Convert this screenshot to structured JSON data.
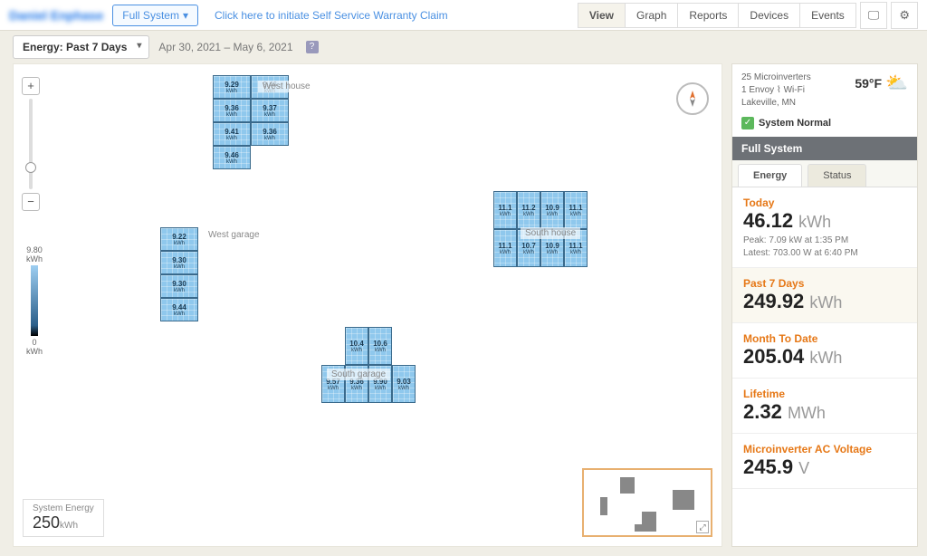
{
  "header": {
    "owner_name": "Daniel Enphase",
    "system_selector": "Full System",
    "warranty_link": "Click here to initiate Self Service Warranty Claim",
    "tabs": [
      "View",
      "Graph",
      "Reports",
      "Devices",
      "Events"
    ],
    "active_tab": "View"
  },
  "controls": {
    "metric_selector": "Energy: Past 7 Days",
    "date_range": "Apr 30, 2021 – May 6, 2021"
  },
  "scale": {
    "max": "9.80",
    "max_unit": "kWh",
    "min": "0",
    "min_unit": "kWh"
  },
  "system_energy": {
    "label": "System Energy",
    "value": "250",
    "unit": "kWh"
  },
  "arrays": {
    "west_house": {
      "label": "West house",
      "panels": [
        [
          "9.29",
          "9.46"
        ],
        [
          "9.36",
          "9.37"
        ],
        [
          "9.41",
          "9.36"
        ],
        [
          "9.46"
        ]
      ]
    },
    "west_garage": {
      "label": "West garage",
      "panels": [
        "9.22",
        "9.30",
        "9.30",
        "9.44"
      ]
    },
    "south_house": {
      "label": "South house",
      "panels": [
        [
          "11.1",
          "11.2",
          "10.9",
          "11.1"
        ],
        [
          "11.1",
          "10.7",
          "10.9",
          "11.1"
        ]
      ]
    },
    "south_garage": {
      "label": "South garage",
      "panels_top": [
        "10.4",
        "10.6"
      ],
      "panels_bottom": [
        "9.57",
        "9.36",
        "9.90",
        "9.03"
      ]
    }
  },
  "sidebar": {
    "microinverters": "25 Microinverters",
    "envoy": "1 Envoy",
    "conn": "Wi-Fi",
    "location": "Lakeville, MN",
    "temp": "59°F",
    "status": "System Normal",
    "section": "Full System",
    "sub_tabs": [
      "Energy",
      "Status"
    ],
    "stats": [
      {
        "label": "Today",
        "value": "46.12",
        "unit": "kWh",
        "meta1": "Peak: 7.09 kW at 1:35 PM",
        "meta2": "Latest: 703.00 W at 6:40 PM"
      },
      {
        "label": "Past 7 Days",
        "value": "249.92",
        "unit": "kWh",
        "highlight": true
      },
      {
        "label": "Month To Date",
        "value": "205.04",
        "unit": "kWh"
      },
      {
        "label": "Lifetime",
        "value": "2.32",
        "unit": "MWh"
      },
      {
        "label": "Microinverter AC Voltage",
        "value": "245.9",
        "unit": "V"
      }
    ]
  }
}
